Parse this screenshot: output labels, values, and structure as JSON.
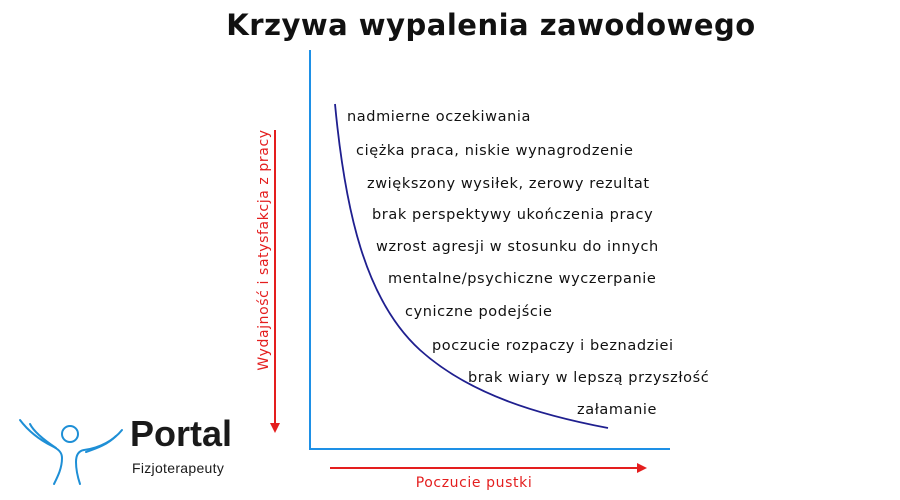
{
  "title": "Krzywa wypalenia zawodowego",
  "y_axis_label": "Wydajność i satysfakcja z pracy",
  "x_axis_label": "Poczucie pustki",
  "stages": [
    "nadmierne oczekiwania",
    "ciężka praca, niskie wynagrodzenie",
    "zwiększony wysiłek, zerowy rezultat",
    "brak perspektywy ukończenia pracy",
    "wzrost agresji w stosunku do innych",
    "mentalne/psychiczne wyczerpanie",
    "cyniczne podejście",
    "poczucie rozpaczy i beznadziei",
    "brak wiary w lepszą przyszłość",
    "załamanie"
  ],
  "logo": {
    "name": "Portal",
    "subtitle": "Fizjoterapeuty"
  },
  "colors": {
    "axis": "#1e90e6",
    "curve": "#1f1f8f",
    "arrow": "#e41e1e",
    "text": "#111111"
  }
}
